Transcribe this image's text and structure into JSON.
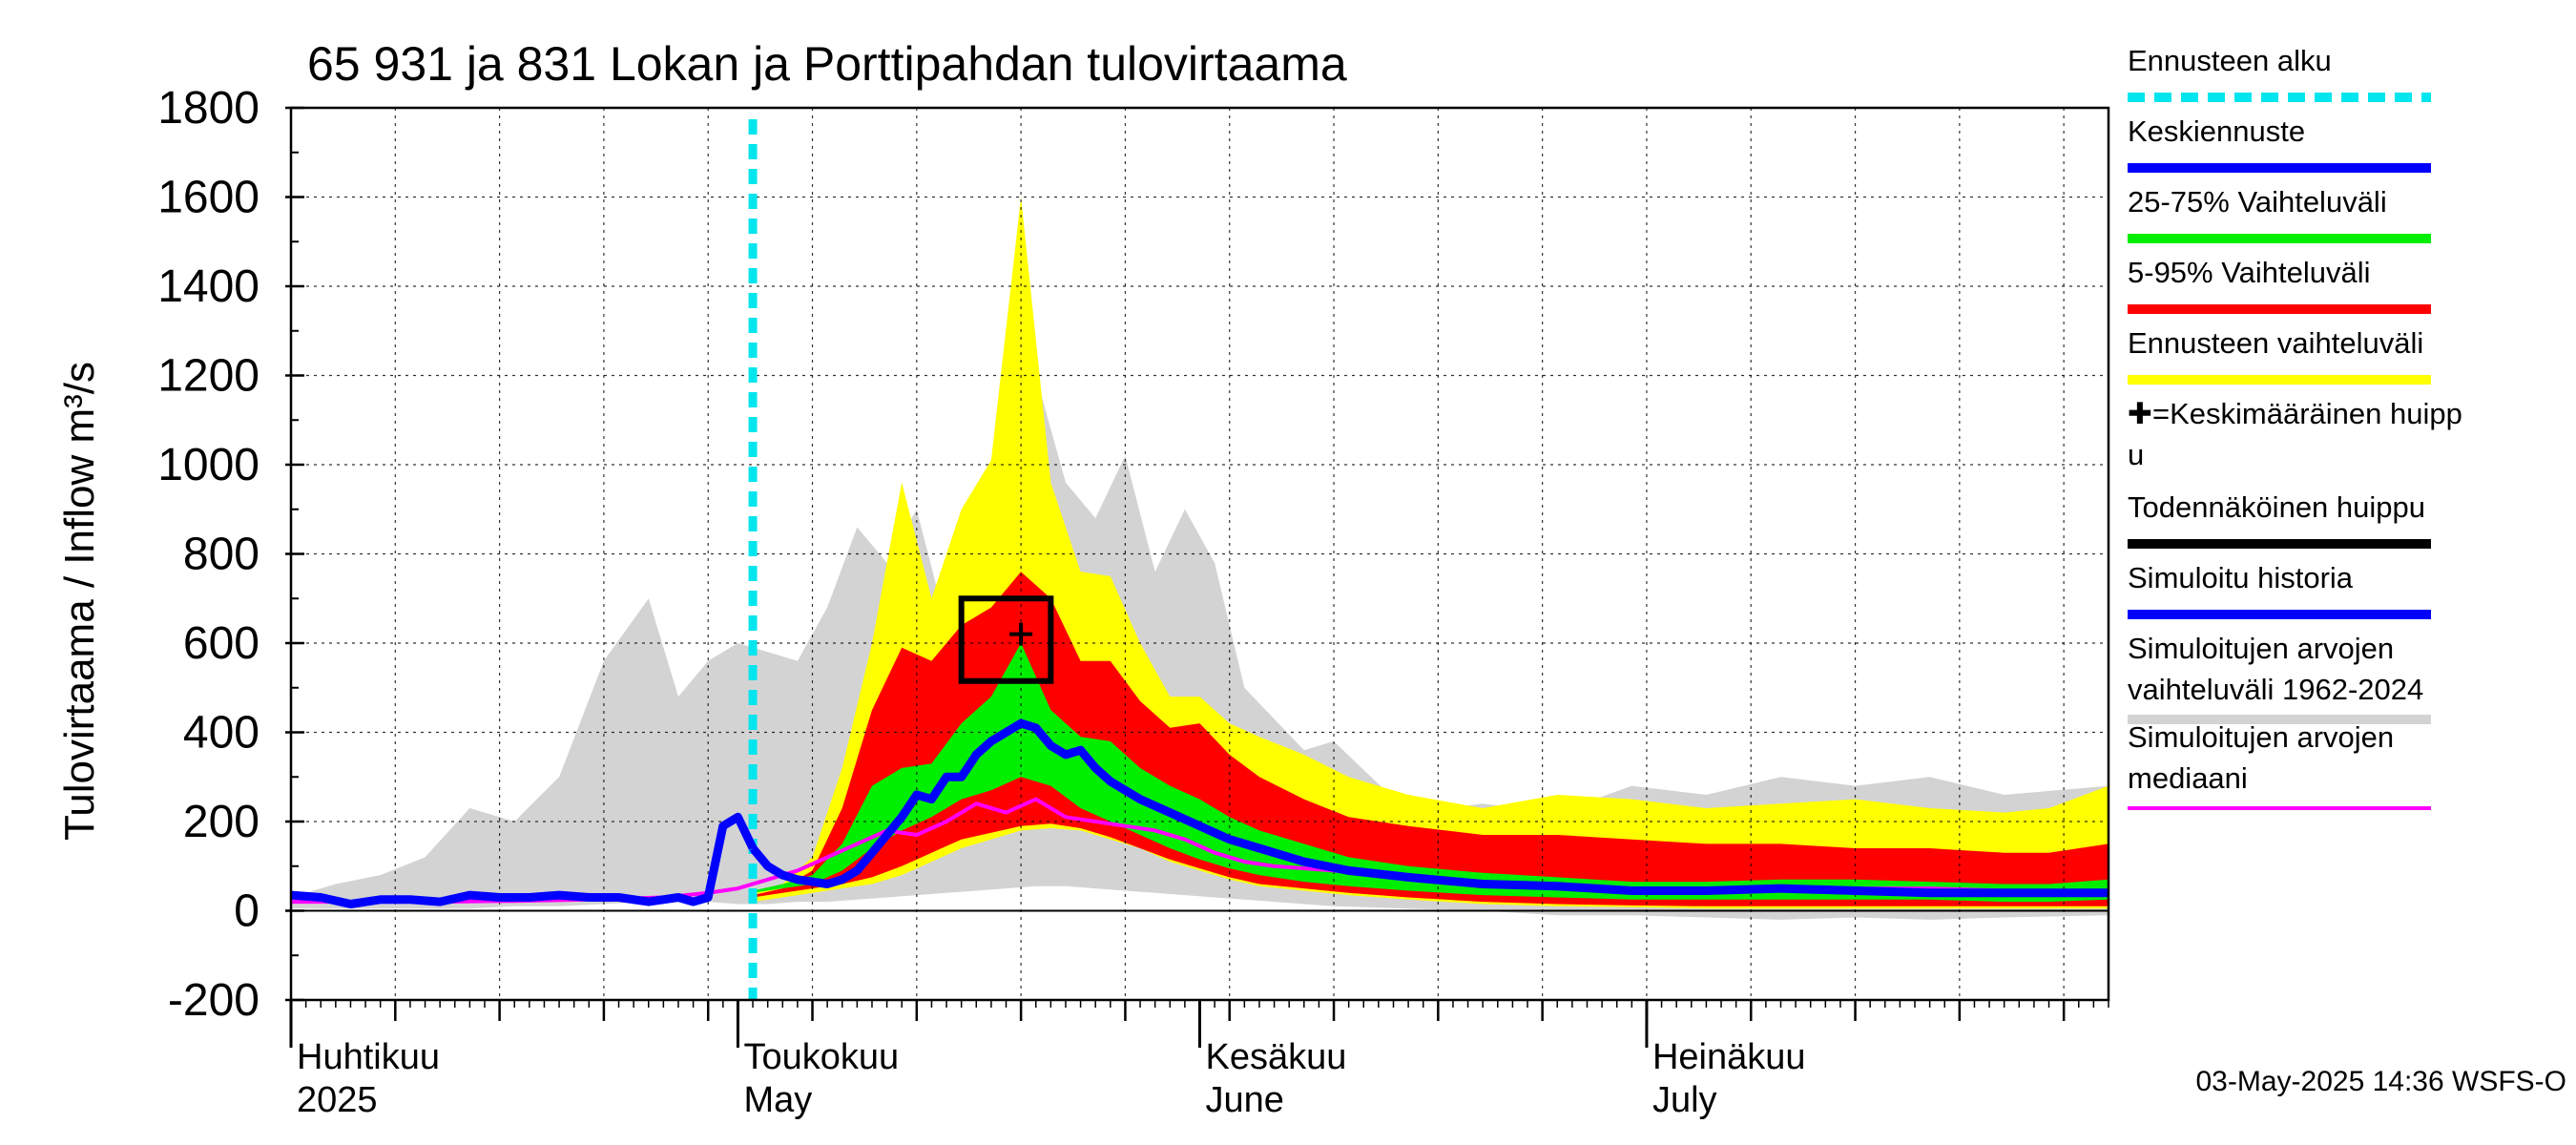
{
  "chart_data": {
    "type": "area",
    "title": "65 931 ja 831 Lokan ja Porttipahdan tulovirtaama",
    "ylabel": "Tulovirtaama / Inflow   m³/s",
    "ylim": [
      -200,
      1800
    ],
    "yticks": [
      "-200",
      "0",
      "200",
      "400",
      "600",
      "800",
      "1000",
      "1200",
      "1400",
      "1600",
      "1800"
    ],
    "x_range_days": [
      0,
      122
    ],
    "forecast_start_day": 31,
    "month_labels": [
      {
        "fi": "Huhtikuu",
        "en": "2025",
        "day": 0
      },
      {
        "fi": "Toukokuu",
        "en": "May",
        "day": 30
      },
      {
        "fi": "Kesäkuu",
        "en": "June",
        "day": 61
      },
      {
        "fi": "Heinäkuu",
        "en": "July",
        "day": 91
      }
    ],
    "mean_peak": {
      "day": 49,
      "value": 620
    },
    "probable_peak_box": {
      "day_start": 45,
      "day_end": 51,
      "value_low": 515,
      "value_high": 700
    },
    "series": [
      {
        "name": "Simuloitujen arvojen vaihteluväli 1962-2024",
        "color": "#d3d3d3",
        "kind": "band",
        "x": [
          0,
          3,
          6,
          9,
          12,
          15,
          18,
          21,
          24,
          26,
          28,
          30,
          32,
          34,
          36,
          38,
          40,
          42,
          44,
          46,
          48,
          50,
          52,
          54,
          56,
          58,
          60,
          62,
          64,
          66,
          68,
          70,
          75,
          80,
          85,
          90,
          95,
          100,
          105,
          110,
          115,
          122
        ],
        "low": [
          5,
          5,
          5,
          5,
          5,
          10,
          10,
          15,
          20,
          20,
          20,
          15,
          15,
          20,
          20,
          25,
          30,
          35,
          40,
          45,
          50,
          55,
          55,
          50,
          45,
          40,
          35,
          30,
          25,
          20,
          15,
          10,
          5,
          0,
          -10,
          -10,
          -15,
          -20,
          -15,
          -20,
          -15,
          -10
        ],
        "high": [
          30,
          60,
          80,
          120,
          230,
          200,
          300,
          560,
          700,
          480,
          560,
          600,
          580,
          560,
          680,
          860,
          780,
          900,
          640,
          860,
          1000,
          1200,
          960,
          880,
          1020,
          760,
          900,
          780,
          500,
          430,
          360,
          380,
          220,
          240,
          220,
          280,
          260,
          300,
          280,
          300,
          260,
          280
        ]
      },
      {
        "name": "Ennusteen vaihteluväli",
        "color": "#ffff00",
        "kind": "band",
        "x": [
          31,
          33,
          35,
          37,
          39,
          41,
          43,
          45,
          47,
          49,
          51,
          53,
          55,
          57,
          59,
          61,
          63,
          65,
          68,
          71,
          75,
          80,
          85,
          90,
          95,
          100,
          105,
          110,
          115,
          118,
          122
        ],
        "low": [
          20,
          30,
          40,
          50,
          60,
          80,
          110,
          140,
          160,
          180,
          185,
          180,
          160,
          140,
          110,
          90,
          70,
          55,
          45,
          35,
          25,
          15,
          10,
          8,
          5,
          5,
          5,
          5,
          5,
          5,
          5
        ],
        "high": [
          40,
          60,
          120,
          320,
          600,
          960,
          700,
          900,
          1010,
          1600,
          960,
          760,
          750,
          600,
          480,
          480,
          420,
          390,
          350,
          300,
          260,
          230,
          260,
          250,
          230,
          240,
          250,
          230,
          220,
          230,
          280
        ]
      },
      {
        "name": "5-95% Vaihteluväli",
        "color": "#ff0000",
        "kind": "band",
        "x": [
          31,
          33,
          35,
          37,
          39,
          41,
          43,
          45,
          47,
          49,
          51,
          53,
          55,
          57,
          59,
          61,
          63,
          65,
          68,
          71,
          75,
          80,
          85,
          90,
          95,
          100,
          105,
          110,
          115,
          118,
          122
        ],
        "low": [
          30,
          40,
          50,
          60,
          75,
          100,
          130,
          160,
          175,
          190,
          195,
          185,
          165,
          140,
          115,
          95,
          75,
          60,
          50,
          40,
          30,
          20,
          15,
          12,
          10,
          10,
          10,
          10,
          10,
          10,
          10
        ],
        "high": [
          35,
          50,
          90,
          230,
          450,
          590,
          560,
          640,
          680,
          760,
          700,
          560,
          560,
          470,
          410,
          420,
          350,
          300,
          250,
          210,
          190,
          170,
          170,
          160,
          150,
          150,
          140,
          140,
          130,
          130,
          150
        ]
      },
      {
        "name": "25-75% Vaihteluväli",
        "color": "#00ee00",
        "kind": "band",
        "x": [
          31,
          33,
          35,
          37,
          39,
          41,
          43,
          45,
          47,
          49,
          51,
          53,
          55,
          57,
          59,
          61,
          63,
          65,
          68,
          71,
          75,
          80,
          85,
          90,
          95,
          100,
          105,
          110,
          115,
          118,
          122
        ],
        "low": [
          40,
          50,
          60,
          90,
          140,
          180,
          210,
          250,
          270,
          300,
          280,
          230,
          200,
          170,
          140,
          115,
          95,
          80,
          65,
          55,
          45,
          35,
          30,
          25,
          25,
          25,
          25,
          25,
          20,
          20,
          25
        ],
        "high": [
          45,
          60,
          80,
          150,
          280,
          320,
          330,
          420,
          480,
          600,
          450,
          390,
          380,
          320,
          280,
          250,
          210,
          180,
          150,
          120,
          100,
          85,
          75,
          65,
          65,
          70,
          70,
          65,
          60,
          60,
          70
        ]
      },
      {
        "name": "Simuloitujen arvojen mediaani",
        "color": "#ff00ff",
        "kind": "line",
        "x": [
          0,
          5,
          10,
          15,
          20,
          25,
          28,
          30,
          32,
          34,
          36,
          38,
          40,
          42,
          44,
          46,
          48,
          50,
          52,
          54,
          56,
          58,
          60,
          62,
          64,
          66,
          70,
          75,
          80,
          85,
          90,
          95,
          100,
          105,
          110,
          115,
          122
        ],
        "y": [
          20,
          20,
          20,
          22,
          25,
          30,
          40,
          50,
          70,
          90,
          120,
          150,
          180,
          170,
          200,
          240,
          220,
          250,
          210,
          200,
          190,
          180,
          160,
          130,
          110,
          100,
          90,
          75,
          60,
          55,
          50,
          45,
          45,
          50,
          50,
          45,
          45
        ]
      },
      {
        "name": "Simuloitu historia",
        "color": "#0000ff",
        "kind": "line",
        "x": [
          0,
          2,
          4,
          6,
          8,
          10,
          12,
          14,
          16,
          18,
          20,
          22,
          24,
          26,
          27,
          28,
          29,
          30,
          31
        ],
        "y": [
          35,
          30,
          15,
          25,
          25,
          20,
          35,
          30,
          30,
          35,
          30,
          30,
          20,
          30,
          20,
          30,
          190,
          210,
          140
        ]
      },
      {
        "name": "Keskiennuste",
        "color": "#0000ff",
        "kind": "line",
        "x": [
          31,
          32,
          33,
          34,
          35,
          36,
          37,
          38,
          39,
          40,
          41,
          42,
          43,
          44,
          45,
          46,
          47,
          48,
          49,
          50,
          51,
          52,
          53,
          54,
          55,
          57,
          59,
          61,
          63,
          65,
          68,
          71,
          75,
          80,
          85,
          90,
          95,
          100,
          105,
          110,
          115,
          122
        ],
        "y": [
          140,
          100,
          80,
          70,
          65,
          60,
          70,
          90,
          130,
          170,
          210,
          260,
          250,
          300,
          300,
          350,
          380,
          400,
          420,
          410,
          370,
          350,
          360,
          320,
          290,
          250,
          220,
          190,
          160,
          140,
          110,
          90,
          75,
          60,
          55,
          45,
          45,
          50,
          45,
          40,
          40,
          40
        ]
      }
    ],
    "legend": {
      "placement": "right",
      "items": [
        {
          "label": "Ennusteen alku",
          "color": "#00e5ee",
          "style": "dashed"
        },
        {
          "label": "Keskiennuste",
          "color": "#0000ff",
          "style": "solid"
        },
        {
          "label": "25-75% Vaihteluväli",
          "color": "#00ee00",
          "style": "solid"
        },
        {
          "label": "5-95% Vaihteluväli",
          "color": "#ff0000",
          "style": "solid"
        },
        {
          "label": "Ennusteen vaihteluväli",
          "color": "#ffff00",
          "style": "solid"
        },
        {
          "label": "✚=Keskimääräinen huipp",
          "label2": "u",
          "color": "",
          "style": "none"
        },
        {
          "label": "Todennäköinen huippu",
          "color": "#000000",
          "style": "solid"
        },
        {
          "label": "Simuloitu historia",
          "color": "#0000ff",
          "style": "solid"
        },
        {
          "label": "Simuloitujen arvojen",
          "label2": "vaihteluväli 1962-2024",
          "color": "#d3d3d3",
          "style": "solid"
        },
        {
          "label": "Simuloitujen arvojen",
          "label2": "mediaani",
          "color": "#ff00ff",
          "style": "solid"
        }
      ]
    },
    "footer": "03-May-2025 14:36 WSFS-O"
  }
}
